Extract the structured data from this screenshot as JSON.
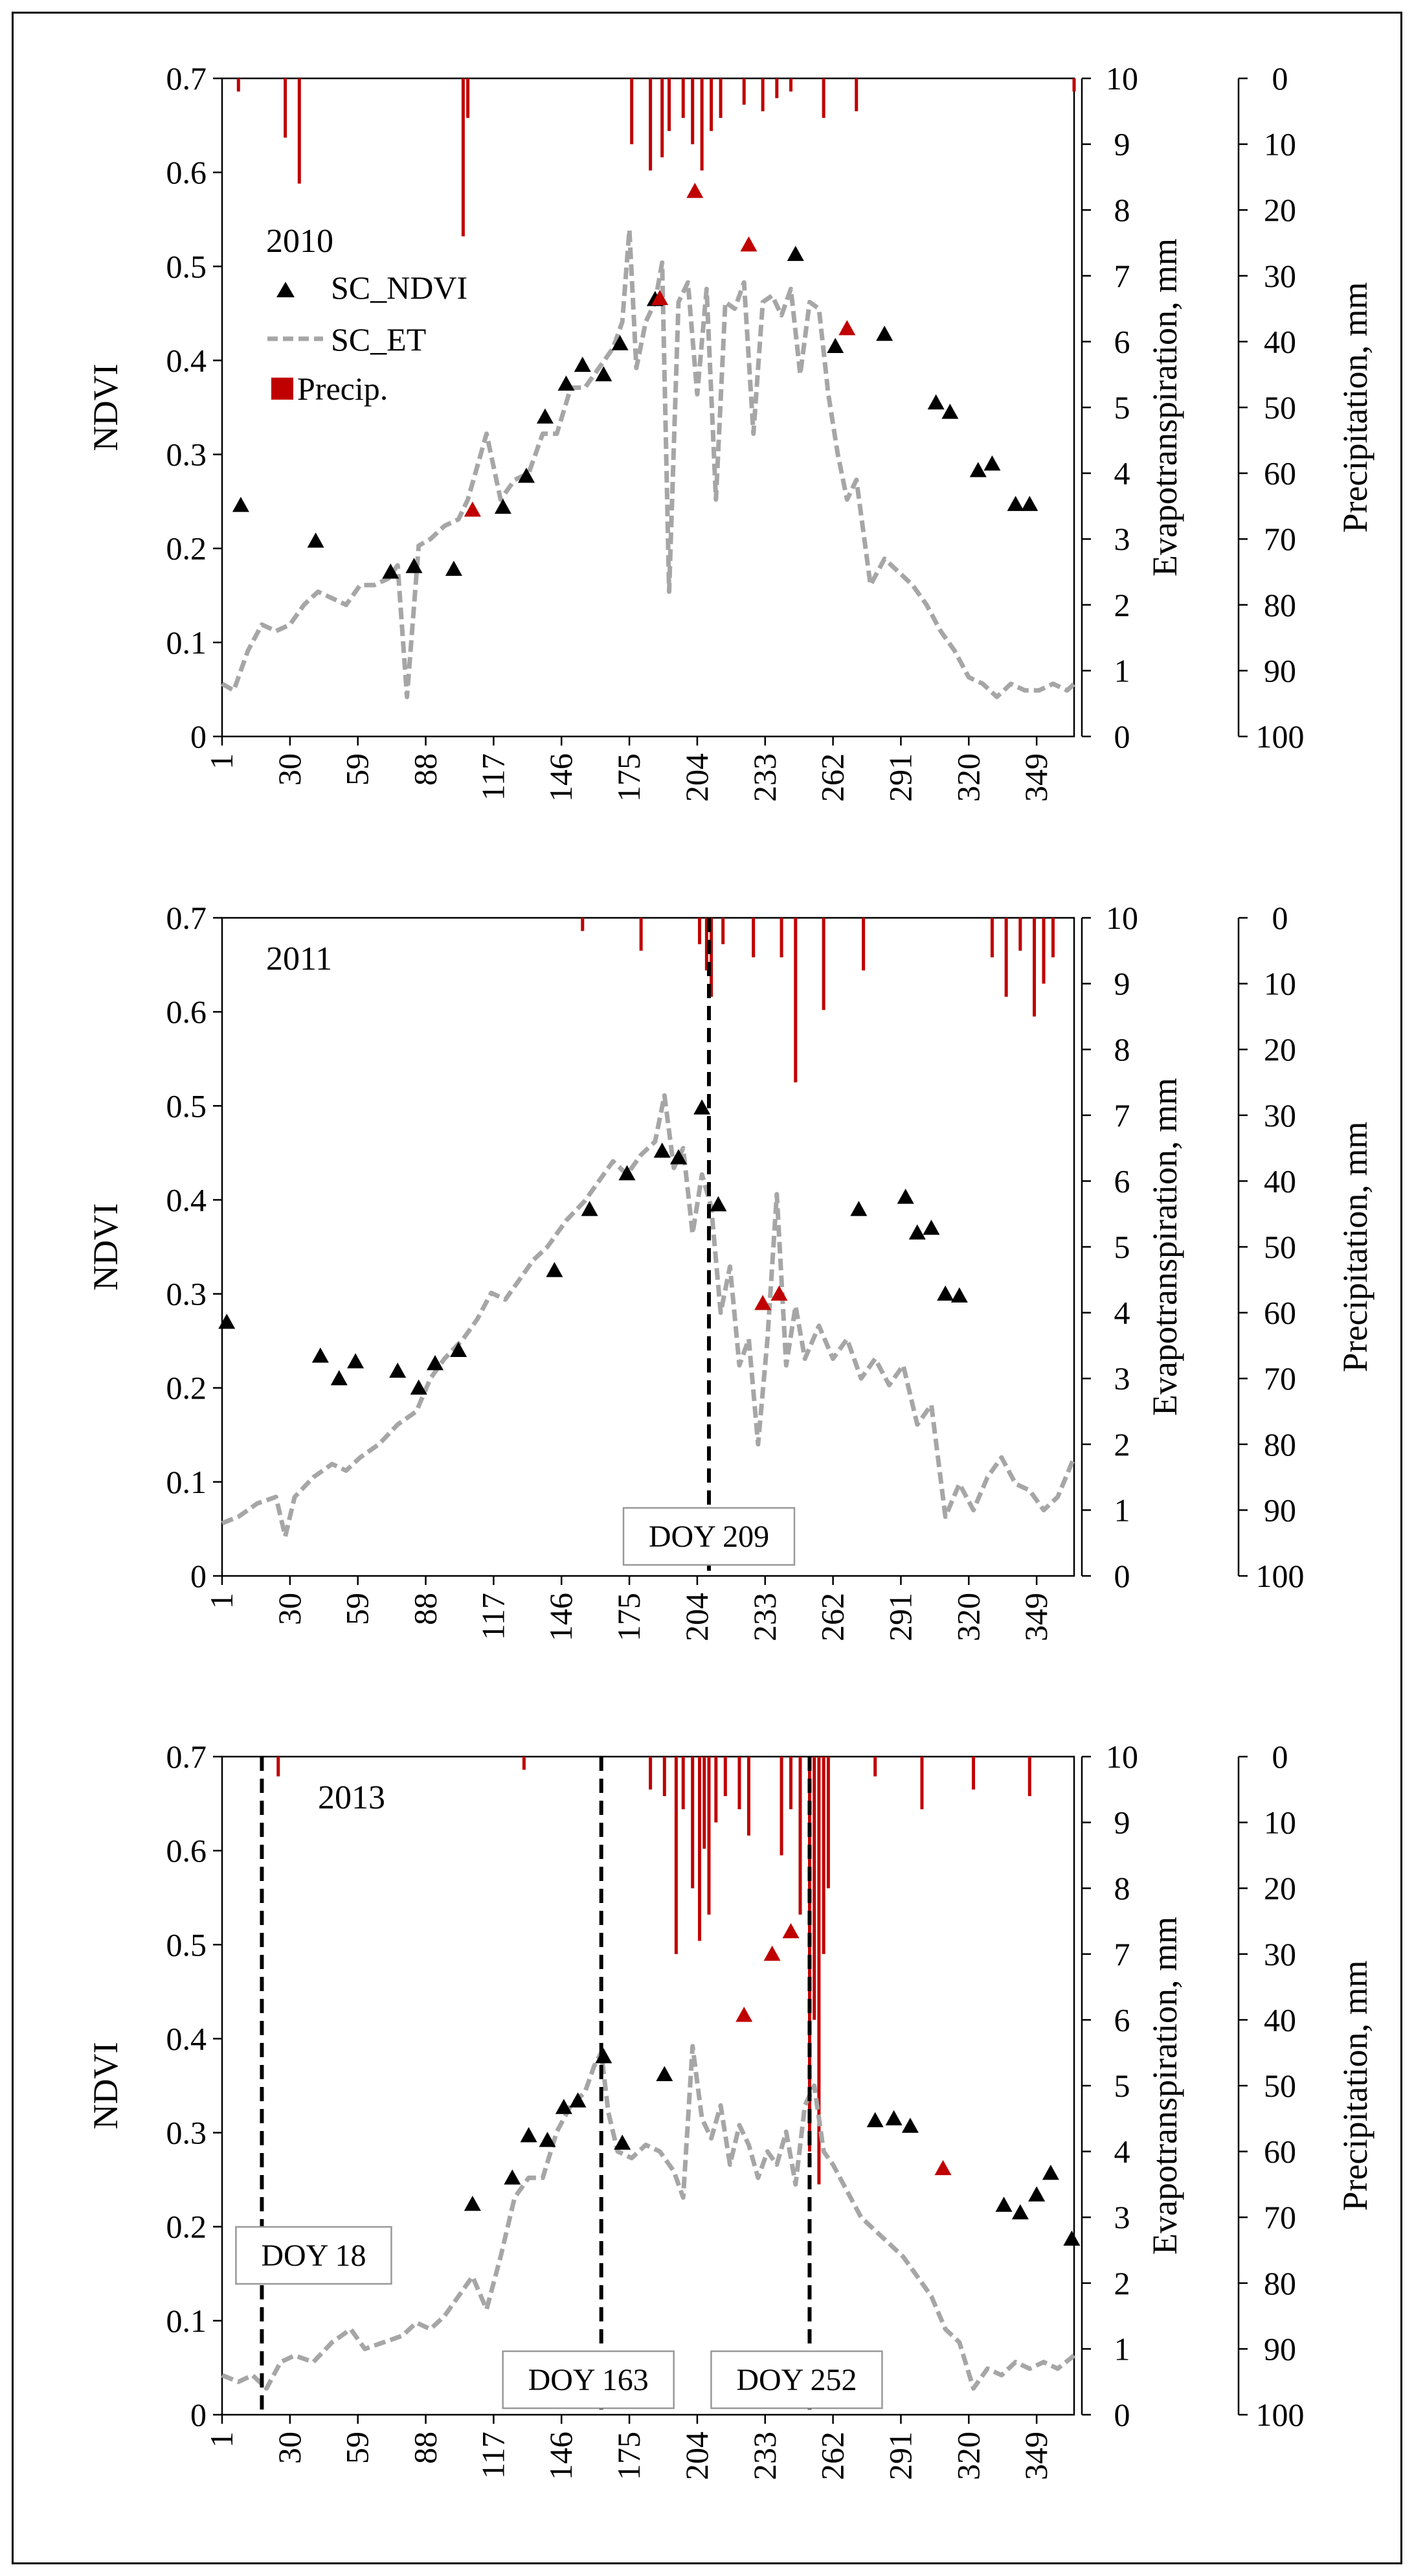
{
  "chart_data": [
    {
      "type": "line",
      "title": "2010",
      "ylabel": "NDVI",
      "y2label": "Evapotranspiration, mm",
      "y3label": "Precipitation, mm",
      "xlim": [
        1,
        365
      ],
      "ylim": [
        0,
        0.7
      ],
      "y2lim": [
        0,
        10
      ],
      "y3lim": [
        100,
        0
      ],
      "x_ticks": [
        "1",
        "30",
        "59",
        "88",
        "117",
        "146",
        "175",
        "204",
        "233",
        "262",
        "291",
        "320",
        "349"
      ],
      "y_ticks": [
        "0",
        "0.1",
        "0.2",
        "0.3",
        "0.4",
        "0.5",
        "0.6",
        "0.7"
      ],
      "y2_ticks": [
        "0",
        "1",
        "2",
        "3",
        "4",
        "5",
        "6",
        "7",
        "8",
        "9",
        "10"
      ],
      "y3_ticks": [
        "100",
        "90",
        "80",
        "70",
        "60",
        "50",
        "40",
        "30",
        "20",
        "10",
        "0"
      ],
      "legend": {
        "position": "left",
        "items": [
          "SC_NDVI",
          "SC_ET",
          "Precip."
        ]
      },
      "series": [
        {
          "name": "SC_NDVI",
          "kind": "marker",
          "color": "#000000",
          "x": [
            9,
            41,
            73,
            83,
            100,
            121,
            131,
            139,
            148,
            155,
            164,
            171,
            186,
            246,
            263,
            284,
            306,
            312,
            324,
            330,
            340,
            346
          ],
          "y": [
            0.246,
            0.208,
            0.175,
            0.181,
            0.178,
            0.244,
            0.277,
            0.34,
            0.375,
            0.395,
            0.385,
            0.418,
            0.465,
            0.513,
            0.415,
            0.428,
            0.355,
            0.345,
            0.283,
            0.29,
            0.247,
            0.247
          ]
        },
        {
          "name": "SC_NDVI (flagged)",
          "kind": "marker",
          "color": "#C00000",
          "x": [
            108,
            188,
            203,
            226,
            268
          ],
          "y": [
            0.241,
            0.466,
            0.58,
            0.523,
            0.434
          ]
        },
        {
          "name": "SC_ET",
          "kind": "line",
          "axis": "right",
          "color": "#A6A6A6",
          "x": [
            1,
            6,
            12,
            18,
            24,
            30,
            36,
            42,
            48,
            54,
            60,
            66,
            72,
            76,
            80,
            85,
            90,
            96,
            102,
            106,
            110,
            114,
            120,
            126,
            132,
            138,
            144,
            150,
            156,
            162,
            168,
            172,
            175,
            178,
            182,
            186,
            189,
            192,
            196,
            200,
            204,
            208,
            212,
            216,
            220,
            224,
            228,
            232,
            236,
            240,
            244,
            248,
            252,
            256,
            260,
            264,
            268,
            272,
            278,
            284,
            290,
            296,
            302,
            308,
            314,
            320,
            326,
            332,
            338,
            344,
            350,
            356,
            362,
            365
          ],
          "y": [
            0.8,
            0.7,
            1.3,
            1.7,
            1.6,
            1.7,
            2.0,
            2.2,
            2.1,
            2.0,
            2.3,
            2.3,
            2.4,
            2.6,
            0.6,
            2.9,
            3.0,
            3.2,
            3.3,
            3.6,
            4.1,
            4.6,
            3.6,
            3.9,
            4.0,
            4.6,
            4.6,
            5.3,
            5.3,
            5.6,
            5.9,
            6.3,
            7.7,
            5.6,
            6.3,
            6.6,
            7.2,
            2.2,
            6.6,
            6.9,
            5.2,
            6.8,
            3.6,
            6.6,
            6.5,
            6.9,
            4.6,
            6.6,
            6.7,
            6.4,
            6.8,
            5.5,
            6.6,
            6.5,
            5.2,
            4.3,
            3.6,
            3.9,
            2.3,
            2.7,
            2.5,
            2.3,
            2.0,
            1.6,
            1.3,
            0.9,
            0.8,
            0.6,
            0.8,
            0.7,
            0.7,
            0.8,
            0.7,
            0.8
          ]
        },
        {
          "name": "Precip.",
          "kind": "bar",
          "axis": "right-inverted",
          "color": "#C00000",
          "x": [
            8,
            28,
            34,
            104,
            106,
            176,
            184,
            189,
            192,
            198,
            202,
            206,
            210,
            214,
            224,
            232,
            238,
            244,
            258,
            272,
            365
          ],
          "y": [
            2,
            9,
            16,
            24,
            6,
            10,
            14,
            12,
            8,
            6,
            10,
            14,
            8,
            6,
            4,
            5,
            3,
            2,
            6,
            5,
            2
          ]
        }
      ]
    },
    {
      "type": "line",
      "title": "2011",
      "ylabel": "NDVI",
      "y2label": "Evapotranspiration, mm",
      "y3label": "Precipitation, mm",
      "xlim": [
        1,
        365
      ],
      "ylim": [
        0,
        0.7
      ],
      "y2lim": [
        0,
        10
      ],
      "y3lim": [
        100,
        0
      ],
      "x_ticks": [
        "1",
        "30",
        "59",
        "88",
        "117",
        "146",
        "175",
        "204",
        "233",
        "262",
        "291",
        "320",
        "349"
      ],
      "y_ticks": [
        "0",
        "0.1",
        "0.2",
        "0.3",
        "0.4",
        "0.5",
        "0.6",
        "0.7"
      ],
      "y2_ticks": [
        "0",
        "1",
        "2",
        "3",
        "4",
        "5",
        "6",
        "7",
        "8",
        "9",
        "10"
      ],
      "y3_ticks": [
        "100",
        "90",
        "80",
        "70",
        "60",
        "50",
        "40",
        "30",
        "20",
        "10",
        "0"
      ],
      "annotations": [
        {
          "label": "DOY 209",
          "x": 209
        }
      ],
      "series": [
        {
          "name": "SC_NDVI",
          "kind": "marker",
          "color": "#000000",
          "x": [
            3,
            43,
            51,
            58,
            76,
            85,
            92,
            102,
            143,
            158,
            174,
            189,
            196,
            206,
            213,
            273,
            293,
            298,
            304,
            310,
            316
          ],
          "y": [
            0.27,
            0.234,
            0.21,
            0.228,
            0.218,
            0.2,
            0.226,
            0.24,
            0.325,
            0.39,
            0.428,
            0.452,
            0.445,
            0.498,
            0.395,
            0.39,
            0.403,
            0.365,
            0.37,
            0.3,
            0.298
          ]
        },
        {
          "name": "SC_NDVI (flagged)",
          "kind": "marker",
          "color": "#C00000",
          "x": [
            232,
            239
          ],
          "y": [
            0.29,
            0.3
          ]
        },
        {
          "name": "SC_ET",
          "kind": "line",
          "axis": "right",
          "color": "#A6A6A6",
          "x": [
            1,
            8,
            16,
            24,
            28,
            32,
            40,
            48,
            54,
            60,
            68,
            76,
            84,
            90,
            96,
            104,
            110,
            116,
            122,
            128,
            134,
            140,
            148,
            156,
            162,
            168,
            174,
            180,
            186,
            190,
            194,
            198,
            202,
            206,
            210,
            214,
            218,
            222,
            226,
            230,
            234,
            238,
            242,
            246,
            250,
            256,
            262,
            268,
            274,
            280,
            286,
            292,
            298,
            304,
            310,
            316,
            322,
            328,
            334,
            340,
            346,
            352,
            358,
            365
          ],
          "y": [
            0.8,
            0.9,
            1.1,
            1.2,
            0.6,
            1.2,
            1.5,
            1.7,
            1.6,
            1.8,
            2.0,
            2.3,
            2.5,
            3.0,
            3.3,
            3.6,
            3.9,
            4.3,
            4.2,
            4.5,
            4.8,
            5.0,
            5.4,
            5.7,
            6.0,
            6.3,
            6.1,
            6.4,
            6.6,
            7.3,
            6.2,
            6.5,
            5.2,
            6.1,
            5.6,
            4.0,
            4.7,
            3.2,
            3.6,
            2.0,
            3.6,
            5.8,
            3.2,
            4.1,
            3.3,
            3.8,
            3.3,
            3.6,
            3.0,
            3.3,
            2.9,
            3.2,
            2.3,
            2.6,
            0.9,
            1.4,
            1.0,
            1.5,
            1.8,
            1.4,
            1.3,
            1.0,
            1.2,
            1.8
          ]
        },
        {
          "name": "Precip.",
          "kind": "bar",
          "axis": "right-inverted",
          "color": "#C00000",
          "x": [
            155,
            180,
            205,
            208,
            210,
            215,
            228,
            240,
            246,
            258,
            275,
            330,
            336,
            342,
            348,
            352,
            356
          ],
          "y": [
            2,
            5,
            4,
            8,
            12,
            4,
            6,
            6,
            25,
            14,
            8,
            6,
            12,
            5,
            15,
            10,
            6
          ]
        }
      ]
    },
    {
      "type": "line",
      "title": "2013",
      "ylabel": "NDVI",
      "y2label": "Evapotranspiration, mm",
      "y3label": "Precipitation, mm",
      "xlim": [
        1,
        365
      ],
      "ylim": [
        0,
        0.7
      ],
      "y2lim": [
        0,
        10
      ],
      "y3lim": [
        100,
        0
      ],
      "x_ticks": [
        "1",
        "30",
        "59",
        "88",
        "117",
        "146",
        "175",
        "204",
        "233",
        "262",
        "291",
        "320",
        "349"
      ],
      "y_ticks": [
        "0",
        "0.1",
        "0.2",
        "0.3",
        "0.4",
        "0.5",
        "0.6",
        "0.7"
      ],
      "y2_ticks": [
        "0",
        "1",
        "2",
        "3",
        "4",
        "5",
        "6",
        "7",
        "8",
        "9",
        "10"
      ],
      "y3_ticks": [
        "100",
        "90",
        "80",
        "70",
        "60",
        "50",
        "40",
        "30",
        "20",
        "10",
        "0"
      ],
      "annotations": [
        {
          "label": "DOY 18",
          "x": 18
        },
        {
          "label": "DOY 163",
          "x": 163
        },
        {
          "label": "DOY 252",
          "x": 252
        }
      ],
      "series": [
        {
          "name": "SC_NDVI",
          "kind": "marker",
          "color": "#000000",
          "x": [
            108,
            125,
            132,
            140,
            147,
            153,
            164,
            172,
            190,
            280,
            288,
            295,
            335,
            342,
            349,
            355,
            364
          ],
          "y": [
            0.224,
            0.252,
            0.297,
            0.292,
            0.327,
            0.334,
            0.381,
            0.289,
            0.362,
            0.313,
            0.315,
            0.307,
            0.223,
            0.215,
            0.234,
            0.257,
            0.187
          ]
        },
        {
          "name": "SC_NDVI (flagged)",
          "kind": "marker",
          "color": "#C00000",
          "x": [
            224,
            236,
            244,
            309
          ],
          "y": [
            0.425,
            0.49,
            0.514,
            0.262
          ]
        },
        {
          "name": "SC_ET",
          "kind": "line",
          "axis": "right",
          "color": "#A6A6A6",
          "x": [
            1,
            8,
            14,
            20,
            26,
            32,
            40,
            48,
            56,
            62,
            70,
            78,
            84,
            90,
            96,
            102,
            108,
            114,
            120,
            126,
            132,
            138,
            144,
            150,
            156,
            160,
            163,
            166,
            170,
            176,
            182,
            188,
            194,
            198,
            202,
            206,
            210,
            214,
            218,
            222,
            226,
            230,
            234,
            238,
            242,
            246,
            250,
            254,
            258,
            262,
            268,
            274,
            280,
            286,
            292,
            298,
            304,
            310,
            316,
            322,
            328,
            334,
            340,
            346,
            352,
            358,
            365
          ],
          "y": [
            0.6,
            0.5,
            0.6,
            0.4,
            0.8,
            0.9,
            0.8,
            1.1,
            1.3,
            1.0,
            1.1,
            1.2,
            1.4,
            1.3,
            1.5,
            1.8,
            2.1,
            1.6,
            2.4,
            3.3,
            3.6,
            3.6,
            4.3,
            4.7,
            4.9,
            5.3,
            5.5,
            4.6,
            4.0,
            3.9,
            4.1,
            4.0,
            3.7,
            3.3,
            5.6,
            4.5,
            4.2,
            4.7,
            3.8,
            4.4,
            4.1,
            3.6,
            4.0,
            3.8,
            4.3,
            3.5,
            4.7,
            5.0,
            4.0,
            3.8,
            3.4,
            3.0,
            2.8,
            2.6,
            2.4,
            2.1,
            1.8,
            1.3,
            1.1,
            0.4,
            0.7,
            0.6,
            0.8,
            0.7,
            0.8,
            0.7,
            0.9
          ]
        },
        {
          "name": "Precip.",
          "kind": "bar",
          "axis": "right-inverted",
          "color": "#C00000",
          "x": [
            25,
            130,
            184,
            190,
            195,
            198,
            202,
            205,
            207,
            209,
            212,
            216,
            222,
            226,
            240,
            244,
            248,
            252,
            254,
            256,
            258,
            260,
            280,
            300,
            322,
            346
          ],
          "y": [
            3,
            2,
            5,
            6,
            30,
            8,
            20,
            28,
            14,
            24,
            10,
            6,
            8,
            12,
            15,
            8,
            24,
            60,
            40,
            65,
            30,
            20,
            3,
            8,
            5,
            6
          ]
        }
      ]
    }
  ]
}
